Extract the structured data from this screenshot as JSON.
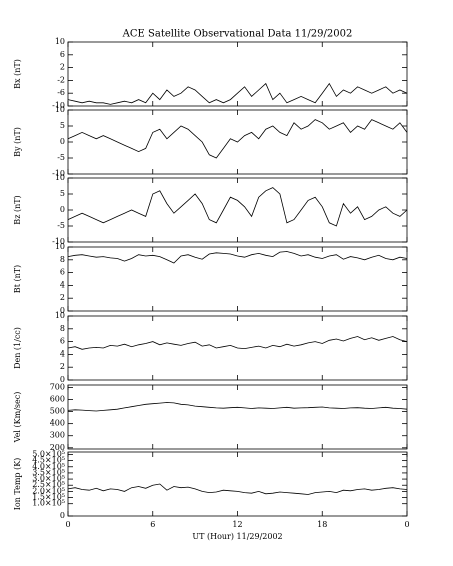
{
  "chart_data": [
    {
      "type": "line",
      "title": "ACE Satellite Observational Data   11/29/2002",
      "ylabel": "Bx (nT)",
      "color": "#000000",
      "x": [
        0,
        0.5,
        1,
        1.5,
        2,
        2.5,
        3,
        3.5,
        4,
        4.5,
        5,
        5.5,
        6,
        6.5,
        7,
        7.5,
        8,
        8.5,
        9,
        9.5,
        10,
        10.5,
        11,
        11.5,
        12,
        12.5,
        13,
        13.5,
        14,
        14.5,
        15,
        15.5,
        16,
        16.5,
        17,
        17.5,
        18,
        18.5,
        19,
        19.5,
        20,
        20.5,
        21,
        21.5,
        22,
        22.5,
        23,
        23.5,
        24
      ],
      "values": [
        -8,
        -8.5,
        -9,
        -8.5,
        -9,
        -9,
        -9.5,
        -9,
        -8.5,
        -9,
        -8,
        -9,
        -6,
        -8,
        -5,
        -7,
        -6,
        -4,
        -5,
        -7,
        -9,
        -8,
        -9,
        -8,
        -6,
        -4,
        -7,
        -5,
        -3,
        -8,
        -6,
        -9,
        -8,
        -7,
        -8,
        -9,
        -6,
        -3,
        -7,
        -5,
        -6,
        -4,
        -5,
        -6,
        -5,
        -4,
        -6,
        -5,
        -6
      ],
      "xlim": [
        0,
        24
      ],
      "ylim": [
        -10,
        10
      ],
      "yticks": [
        -10,
        -6,
        -2,
        2,
        6,
        10
      ]
    },
    {
      "type": "line",
      "ylabel": "By (nT)",
      "color": "#000000",
      "x": [
        0,
        0.5,
        1,
        1.5,
        2,
        2.5,
        3,
        3.5,
        4,
        4.5,
        5,
        5.5,
        6,
        6.5,
        7,
        7.5,
        8,
        8.5,
        9,
        9.5,
        10,
        10.5,
        11,
        11.5,
        12,
        12.5,
        13,
        13.5,
        14,
        14.5,
        15,
        15.5,
        16,
        16.5,
        17,
        17.5,
        18,
        18.5,
        19,
        19.5,
        20,
        20.5,
        21,
        21.5,
        22,
        22.5,
        23,
        23.5,
        24
      ],
      "values": [
        1,
        2,
        3,
        2,
        1,
        2,
        1,
        0,
        -1,
        -2,
        -3,
        -2,
        3,
        4,
        1,
        3,
        5,
        4,
        2,
        0,
        -4,
        -5,
        -2,
        1,
        0,
        2,
        3,
        1,
        4,
        5,
        3,
        2,
        6,
        4,
        5,
        7,
        6,
        4,
        5,
        6,
        3,
        5,
        4,
        7,
        6,
        5,
        4,
        6,
        3
      ],
      "xlim": [
        0,
        24
      ],
      "ylim": [
        -10,
        10
      ],
      "yticks": [
        -10,
        -5,
        0,
        5,
        10
      ]
    },
    {
      "type": "line",
      "ylabel": "Bz (nT)",
      "color": "#000000",
      "x": [
        0,
        0.5,
        1,
        1.5,
        2,
        2.5,
        3,
        3.5,
        4,
        4.5,
        5,
        5.5,
        6,
        6.5,
        7,
        7.5,
        8,
        8.5,
        9,
        9.5,
        10,
        10.5,
        11,
        11.5,
        12,
        12.5,
        13,
        13.5,
        14,
        14.5,
        15,
        15.5,
        16,
        16.5,
        17,
        17.5,
        18,
        18.5,
        19,
        19.5,
        20,
        20.5,
        21,
        21.5,
        22,
        22.5,
        23,
        23.5,
        24
      ],
      "values": [
        -3,
        -2,
        -1,
        -2,
        -3,
        -4,
        -3,
        -2,
        -1,
        0,
        -1,
        -2,
        5,
        6,
        2,
        -1,
        1,
        3,
        5,
        2,
        -3,
        -4,
        0,
        4,
        3,
        1,
        -2,
        4,
        6,
        7,
        5,
        -4,
        -3,
        0,
        3,
        4,
        1,
        -4,
        -5,
        2,
        -1,
        1,
        -3,
        -2,
        0,
        1,
        -1,
        -2,
        0
      ],
      "xlim": [
        0,
        24
      ],
      "ylim": [
        -10,
        10
      ],
      "yticks": [
        -10,
        -5,
        0,
        5,
        10
      ]
    },
    {
      "type": "line",
      "ylabel": "Bt (nT)",
      "color": "#000000",
      "x": [
        0,
        0.5,
        1,
        1.5,
        2,
        2.5,
        3,
        3.5,
        4,
        4.5,
        5,
        5.5,
        6,
        6.5,
        7,
        7.5,
        8,
        8.5,
        9,
        9.5,
        10,
        10.5,
        11,
        11.5,
        12,
        12.5,
        13,
        13.5,
        14,
        14.5,
        15,
        15.5,
        16,
        16.5,
        17,
        17.5,
        18,
        18.5,
        19,
        19.5,
        20,
        20.5,
        21,
        21.5,
        22,
        22.5,
        23,
        23.5,
        24
      ],
      "values": [
        8.5,
        8.7,
        8.8,
        8.6,
        8.4,
        8.5,
        8.3,
        8.2,
        7.8,
        8.2,
        8.8,
        8.6,
        8.7,
        8.5,
        8,
        7.5,
        8.6,
        8.8,
        8.4,
        8.1,
        8.9,
        9.1,
        9,
        8.9,
        8.6,
        8.4,
        8.8,
        9,
        8.7,
        8.5,
        9.2,
        9.3,
        9,
        8.6,
        8.8,
        8.4,
        8.2,
        8.6,
        8.8,
        8.1,
        8.5,
        8.3,
        8,
        8.4,
        8.7,
        8.2,
        8,
        8.4,
        8.2
      ],
      "xlim": [
        0,
        24
      ],
      "ylim": [
        0,
        10
      ],
      "yticks": [
        0,
        2,
        4,
        6,
        8,
        10
      ]
    },
    {
      "type": "line",
      "ylabel": "Den (1/cc)",
      "color": "#000000",
      "x": [
        0,
        0.5,
        1,
        1.5,
        2,
        2.5,
        3,
        3.5,
        4,
        4.5,
        5,
        5.5,
        6,
        6.5,
        7,
        7.5,
        8,
        8.5,
        9,
        9.5,
        10,
        10.5,
        11,
        11.5,
        12,
        12.5,
        13,
        13.5,
        14,
        14.5,
        15,
        15.5,
        16,
        16.5,
        17,
        17.5,
        18,
        18.5,
        19,
        19.5,
        20,
        20.5,
        21,
        21.5,
        22,
        22.5,
        23,
        23.5,
        24
      ],
      "values": [
        5,
        5.2,
        4.8,
        5,
        5.1,
        5,
        5.4,
        5.3,
        5.6,
        5.2,
        5.5,
        5.7,
        6,
        5.5,
        5.8,
        5.6,
        5.4,
        5.7,
        5.9,
        5.3,
        5.5,
        5,
        5.2,
        5.4,
        5,
        4.9,
        5.1,
        5.3,
        5,
        5.4,
        5.2,
        5.6,
        5.3,
        5.5,
        5.8,
        6,
        5.7,
        6.2,
        6.4,
        6.1,
        6.5,
        6.8,
        6.3,
        6.6,
        6.2,
        6.5,
        6.8,
        6.3,
        6
      ],
      "xlim": [
        0,
        24
      ],
      "ylim": [
        0,
        10
      ],
      "yticks": [
        0,
        2,
        4,
        6,
        8,
        10
      ]
    },
    {
      "type": "line",
      "ylabel": "Vel (Km/sec)",
      "color": "#000000",
      "x": [
        0,
        0.5,
        1,
        1.5,
        2,
        2.5,
        3,
        3.5,
        4,
        4.5,
        5,
        5.5,
        6,
        6.5,
        7,
        7.5,
        8,
        8.5,
        9,
        9.5,
        10,
        10.5,
        11,
        11.5,
        12,
        12.5,
        13,
        13.5,
        14,
        14.5,
        15,
        15.5,
        16,
        16.5,
        17,
        17.5,
        18,
        18.5,
        19,
        19.5,
        20,
        20.5,
        21,
        21.5,
        22,
        22.5,
        23,
        23.5,
        24
      ],
      "values": [
        510,
        515,
        512,
        508,
        505,
        510,
        515,
        520,
        530,
        540,
        550,
        560,
        565,
        570,
        575,
        572,
        560,
        555,
        545,
        540,
        535,
        530,
        528,
        532,
        535,
        530,
        525,
        530,
        528,
        525,
        530,
        535,
        528,
        530,
        532,
        535,
        538,
        530,
        528,
        525,
        530,
        532,
        528,
        525,
        530,
        535,
        528,
        525,
        520
      ],
      "xlim": [
        0,
        24
      ],
      "ylim": [
        190,
        720
      ],
      "yticks": [
        200,
        300,
        400,
        500,
        600,
        700
      ]
    },
    {
      "type": "line",
      "ylabel": "Ion Temp (K)",
      "xlabel": "UT (Hour)  11/29/2002",
      "color": "#000000",
      "x": [
        0,
        0.5,
        1,
        1.5,
        2,
        2.5,
        3,
        3.5,
        4,
        4.5,
        5,
        5.5,
        6,
        6.5,
        7,
        7.5,
        8,
        8.5,
        9,
        9.5,
        10,
        10.5,
        11,
        11.5,
        12,
        12.5,
        13,
        13.5,
        14,
        14.5,
        15,
        15.5,
        16,
        16.5,
        17,
        17.5,
        18,
        18.5,
        19,
        19.5,
        20,
        20.5,
        21,
        21.5,
        22,
        22.5,
        23,
        23.5,
        24
      ],
      "values": [
        220000,
        230000,
        215000,
        210000,
        225000,
        205000,
        220000,
        215000,
        200000,
        230000,
        240000,
        225000,
        250000,
        260000,
        210000,
        240000,
        230000,
        235000,
        220000,
        200000,
        190000,
        195000,
        210000,
        205000,
        200000,
        190000,
        185000,
        200000,
        180000,
        185000,
        195000,
        190000,
        185000,
        180000,
        175000,
        190000,
        195000,
        200000,
        190000,
        210000,
        205000,
        215000,
        220000,
        210000,
        215000,
        225000,
        230000,
        220000,
        215000
      ],
      "xlim": [
        0,
        24
      ],
      "ylim": [
        0,
        520000
      ],
      "yticks": [
        0,
        {
          "value": 100000,
          "label": "1.0×10⁵"
        },
        {
          "value": 150000,
          "label": "1.5×10⁵"
        },
        {
          "value": 200000,
          "label": "2.0×10⁵"
        },
        {
          "value": 250000,
          "label": "2.5×10⁵"
        },
        {
          "value": 300000,
          "label": "3.0×10⁵"
        },
        {
          "value": 350000,
          "label": "3.5×10⁵"
        },
        {
          "value": 400000,
          "label": "4.0×10⁵"
        },
        {
          "value": 450000,
          "label": "4.5×10⁵"
        },
        {
          "value": 500000,
          "label": "5.0×10⁵"
        }
      ],
      "xticks": [
        0,
        6,
        12,
        18,
        {
          "value": 24,
          "label": "0"
        }
      ]
    }
  ]
}
